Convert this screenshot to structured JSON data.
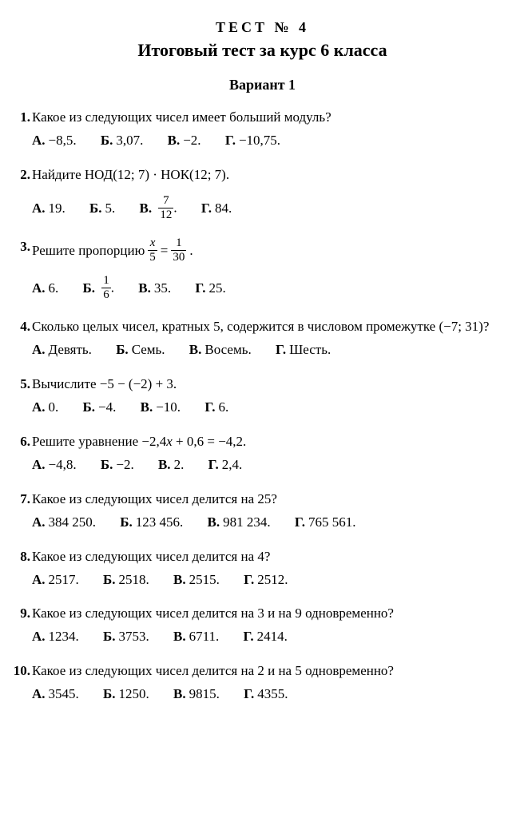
{
  "header": {
    "testNo": "ТЕСТ № 4",
    "title": "Итоговый тест за курс 6 класса",
    "variant": "Вариант 1"
  },
  "labels": {
    "A": "А.",
    "B": "Б.",
    "V": "В.",
    "G": "Г."
  },
  "q1": {
    "text": "Какое из следующих чисел имеет больший модуль?",
    "a": "−8,5.",
    "b": "3,07.",
    "v": "−2.",
    "g": "−10,75."
  },
  "q2": {
    "text": "Найдите НОД(12; 7) · НОК(12; 7).",
    "a": "19.",
    "b": "5.",
    "v_num": "7",
    "v_den": "12",
    "v_after": ".",
    "g": "84."
  },
  "q3": {
    "pre": "Решите пропорцию ",
    "lhs_num": "x",
    "lhs_den": "5",
    "eq": " = ",
    "rhs_num": "1",
    "rhs_den": "30",
    "post": ".",
    "a": "6.",
    "b_num": "1",
    "b_den": "6",
    "b_after": ".",
    "v": "35.",
    "g": "25."
  },
  "q4": {
    "text": "Сколько целых чисел, кратных 5, содержится в числовом промежутке (−7; 31)?",
    "a": "Девять.",
    "b": "Семь.",
    "v": "Восемь.",
    "g": "Шесть."
  },
  "q5": {
    "text": "Вычислите −5 − (−2) + 3.",
    "a": "0.",
    "b": "−4.",
    "v": "−10.",
    "g": "6."
  },
  "q6": {
    "pre": "Решите уравнение −2,4",
    "xvar": "x",
    "post": " + 0,6 = −4,2.",
    "a": "−4,8.",
    "b": "−2.",
    "v": "2.",
    "g": "2,4."
  },
  "q7": {
    "text": "Какое из следующих чисел делится на 25?",
    "a": "384 250.",
    "b": "123 456.",
    "v": "981 234.",
    "g": "765 561."
  },
  "q8": {
    "text": "Какое из следующих чисел делится на 4?",
    "a": "2517.",
    "b": "2518.",
    "v": "2515.",
    "g": "2512."
  },
  "q9": {
    "text": "Какое из следующих чисел делится на 3 и на 9 одновременно?",
    "a": "1234.",
    "b": "3753.",
    "v": "6711.",
    "g": "2414."
  },
  "q10": {
    "text": "Какое из следующих чисел делится на 2 и на 5 одновременно?",
    "a": "3545.",
    "b": "1250.",
    "v": "9815.",
    "g": "4355."
  }
}
